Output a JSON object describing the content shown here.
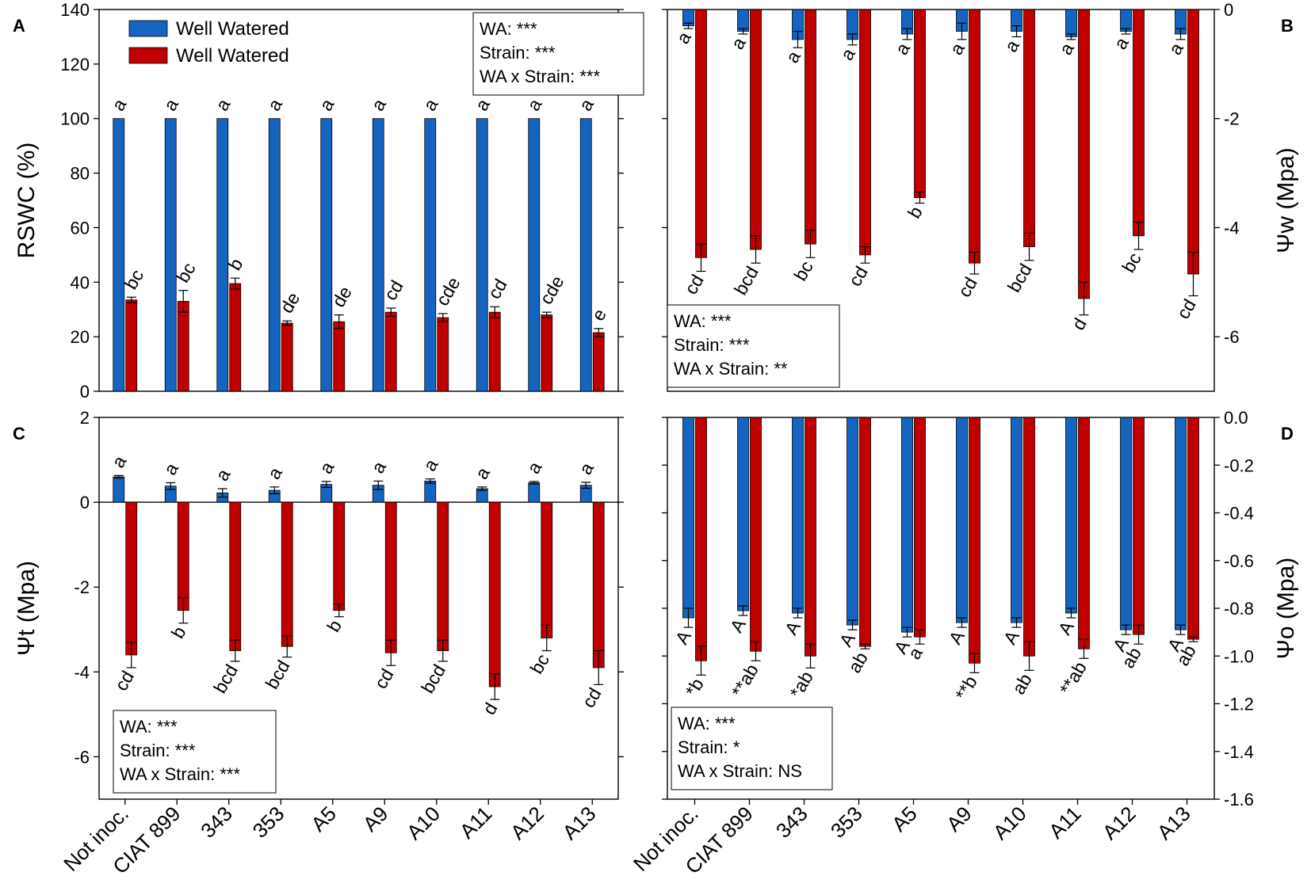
{
  "categories": [
    "Not inoc.",
    "CIAT 899",
    "343",
    "353",
    "A5",
    "A9",
    "A10",
    "A11",
    "A12",
    "A13"
  ],
  "colors": {
    "blue": "#1565c0",
    "red": "#c00000",
    "axis": "#000000"
  },
  "legend": [
    {
      "label": "Well Watered",
      "color": "#1565c0"
    },
    {
      "label": "Well Watered",
      "color": "#c00000"
    }
  ],
  "chart_data": [
    {
      "panel": "A",
      "type": "bar",
      "ylabel": "RSWC (%)",
      "ylim": [
        0,
        140
      ],
      "yticks": [
        "0",
        "20",
        "40",
        "60",
        "80",
        "100",
        "120",
        "140"
      ],
      "series": [
        {
          "name": "Well Watered",
          "color": "#1565c0",
          "values": [
            100,
            100,
            100,
            100,
            100,
            100,
            100,
            100,
            100,
            100
          ],
          "errors": [
            0,
            0,
            0,
            0,
            0,
            0,
            0,
            0,
            0,
            0
          ],
          "letters": [
            "a",
            "a",
            "a",
            "a",
            "a",
            "a",
            "a",
            "a",
            "a",
            "a"
          ]
        },
        {
          "name": "Well Watered",
          "color": "#c00000",
          "values": [
            33.5,
            33,
            39.5,
            25,
            25.5,
            29,
            27,
            29,
            28,
            21.5
          ],
          "errors": [
            1,
            4,
            2,
            0.8,
            2.5,
            1.5,
            1.5,
            2,
            1,
            1.5
          ],
          "letters": [
            "bc",
            "bc",
            "b",
            "de",
            "de",
            "cd",
            "cde",
            "cd",
            "cde",
            "e"
          ]
        }
      ],
      "stats": [
        "WA: ***",
        "Strain: ***",
        "WA x Strain: ***"
      ]
    },
    {
      "panel": "B",
      "type": "bar",
      "ylabel": "Ψw (Mpa)",
      "ylim": [
        -7,
        0
      ],
      "yticks": [
        "0",
        "-2",
        "-4",
        "-6"
      ],
      "series": [
        {
          "name": "Well Watered",
          "color": "#1565c0",
          "values": [
            -0.3,
            -0.4,
            -0.55,
            -0.55,
            -0.45,
            -0.4,
            -0.4,
            -0.5,
            -0.4,
            -0.45
          ],
          "errors": [
            0.05,
            0.05,
            0.15,
            0.1,
            0.1,
            0.15,
            0.1,
            0.05,
            0.05,
            0.1
          ],
          "letters": [
            "a",
            "a",
            "a",
            "a",
            "a",
            "a",
            "a",
            "a",
            "a",
            "a"
          ]
        },
        {
          "name": "Well Watered",
          "color": "#c00000",
          "values": [
            -4.55,
            -4.4,
            -4.3,
            -4.5,
            -3.45,
            -4.65,
            -4.35,
            -5.3,
            -4.15,
            -4.85
          ],
          "errors": [
            0.25,
            0.25,
            0.25,
            0.15,
            0.1,
            0.2,
            0.25,
            0.3,
            0.25,
            0.4
          ],
          "letters": [
            "cd",
            "bcd",
            "bc",
            "cd",
            "b",
            "cd",
            "bcd",
            "d",
            "bc",
            "cd"
          ]
        }
      ],
      "stats": [
        "WA: ***",
        "Strain: ***",
        "WA x Strain: **"
      ]
    },
    {
      "panel": "C",
      "type": "bar",
      "ylabel": "Ψt (Mpa)",
      "ylim": [
        -7,
        2
      ],
      "yticks": [
        "2",
        "0",
        "-2",
        "-4",
        "-6"
      ],
      "series": [
        {
          "name": "Well Watered",
          "color": "#1565c0",
          "values": [
            0.6,
            0.38,
            0.22,
            0.28,
            0.42,
            0.4,
            0.5,
            0.32,
            0.46,
            0.4
          ],
          "errors": [
            0.03,
            0.08,
            0.1,
            0.08,
            0.07,
            0.1,
            0.05,
            0.04,
            0.03,
            0.07
          ],
          "letters": [
            "a",
            "a",
            "a",
            "a",
            "a",
            "a",
            "a",
            "a",
            "a",
            "a"
          ]
        },
        {
          "name": "Well Watered",
          "color": "#c00000",
          "values": [
            -3.6,
            -2.55,
            -3.5,
            -3.4,
            -2.55,
            -3.55,
            -3.5,
            -4.35,
            -3.2,
            -3.9
          ],
          "errors": [
            0.3,
            0.3,
            0.25,
            0.25,
            0.15,
            0.3,
            0.25,
            0.3,
            0.3,
            0.4
          ],
          "letters": [
            "cd",
            "b",
            "bcd",
            "bcd",
            "b",
            "cd",
            "bcd",
            "d",
            "bc",
            "cd"
          ]
        }
      ],
      "stats": [
        "WA: ***",
        "Strain: ***",
        "WA x Strain: ***"
      ]
    },
    {
      "panel": "D",
      "type": "bar",
      "ylabel": "Ψo (Mpa)",
      "ylim": [
        -1.6,
        0
      ],
      "yticks": [
        "0.0",
        "-0.2",
        "-0.4",
        "-0.6",
        "-0.8",
        "-1.0",
        "-1.2",
        "-1.4",
        "-1.6"
      ],
      "series": [
        {
          "name": "Well Watered",
          "color": "#1565c0",
          "values": [
            -0.84,
            -0.81,
            -0.82,
            -0.87,
            -0.9,
            -0.86,
            -0.86,
            -0.82,
            -0.89,
            -0.89
          ],
          "errors": [
            0.04,
            0.02,
            0.02,
            0.02,
            0.02,
            0.02,
            0.02,
            0.02,
            0.02,
            0.02
          ],
          "letters": [
            "A",
            "A",
            "A",
            "A",
            "A",
            "A",
            "A",
            "A",
            "A",
            "A"
          ]
        },
        {
          "name": "Well Watered",
          "color": "#c00000",
          "values": [
            -1.02,
            -0.98,
            -1.0,
            -0.96,
            -0.92,
            -1.03,
            -1.0,
            -0.97,
            -0.91,
            -0.93
          ],
          "errors": [
            0.06,
            0.04,
            0.05,
            0.01,
            0.03,
            0.04,
            0.06,
            0.04,
            0.04,
            0.01
          ],
          "letters": [
            "*b",
            "**ab",
            "*ab",
            "ab",
            "a",
            "**b",
            "ab",
            "**ab",
            "ab",
            "ab"
          ]
        }
      ],
      "stats": [
        "WA: ***",
        "Strain: *",
        "WA x Strain: NS"
      ]
    }
  ]
}
